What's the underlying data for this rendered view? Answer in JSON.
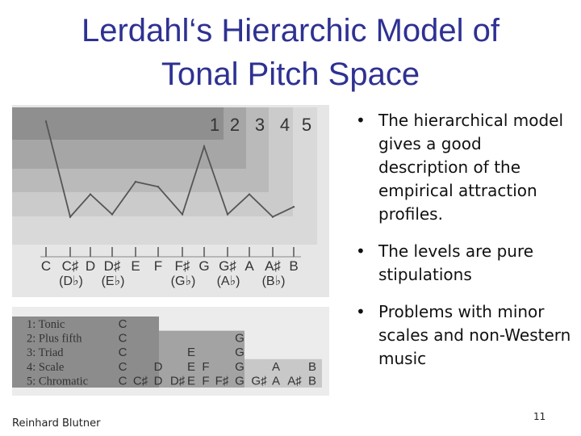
{
  "slide": {
    "title_line1": "Lerdahl‘s Hierarchic Model of",
    "title_line2": "Tonal Pitch Space",
    "bullets": [
      "The hierarchical model gives a good description of the empirical attraction profiles.",
      "The levels are pure stipulations",
      "Problems with minor scales and non-Western music"
    ],
    "footer": "Reinhard Blutner",
    "page_number": "11"
  },
  "chart_data": {
    "type": "line",
    "level_labels": [
      "1",
      "2",
      "3",
      "4",
      "5"
    ],
    "notes": [
      "C",
      "C♯",
      "D",
      "D♯",
      "E",
      "F",
      "F♯",
      "G",
      "G♯",
      "A",
      "A♯",
      "B"
    ],
    "enharmonics": [
      "",
      "(D♭)",
      "",
      "(E♭)",
      "",
      "",
      "(G♭)",
      "",
      "(A♭)",
      "",
      "(B♭)",
      ""
    ],
    "series": [
      {
        "values": [
          5,
          1.2,
          2.1,
          1.3,
          2.6,
          2.4,
          1.3,
          4,
          1.3,
          2.1,
          1.2,
          1.6
        ]
      }
    ],
    "ylim": [
      0,
      5.5
    ],
    "hierarchy_table": {
      "rows": [
        {
          "label": "1: Tonic",
          "notes": [
            "C",
            "",
            "",
            "",
            "",
            "",
            "",
            "",
            "",
            "",
            "",
            ""
          ]
        },
        {
          "label": "2: Plus fifth",
          "notes": [
            "C",
            "",
            "",
            "",
            "",
            "",
            "",
            "G",
            "",
            "",
            "",
            ""
          ]
        },
        {
          "label": "3: Triad",
          "notes": [
            "C",
            "",
            "",
            "",
            "E",
            "",
            "",
            "G",
            "",
            "",
            "",
            ""
          ]
        },
        {
          "label": "4: Scale",
          "notes": [
            "C",
            "",
            "D",
            "",
            "E",
            "F",
            "",
            "G",
            "",
            "A",
            "",
            "B"
          ]
        },
        {
          "label": "5: Chromatic",
          "notes": [
            "C",
            "C♯",
            "D",
            "D♯",
            "E",
            "F",
            "F♯",
            "G",
            "G♯",
            "A",
            "A♯",
            "B"
          ]
        }
      ]
    },
    "colors": {
      "band1": "#8f8f8f",
      "band2": "#a6a6a6",
      "band3": "#bababa",
      "band4": "#cbcbcb",
      "band5": "#d9d9d9",
      "line": "#555555"
    }
  }
}
